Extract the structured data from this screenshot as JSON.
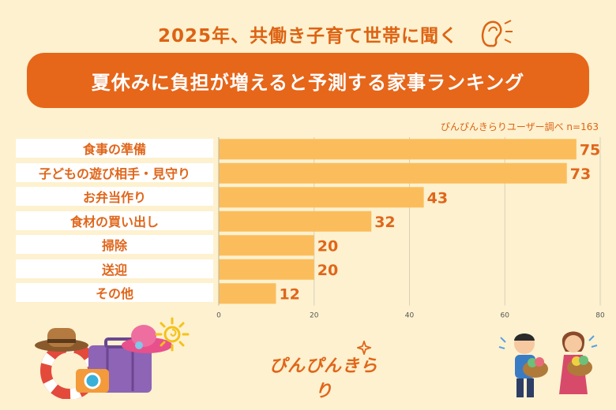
{
  "header": {
    "headline": "2025年、共働き子育て世帯に聞く",
    "banner_title": "夏休みに負担が増えると予測する家事ランキング",
    "source": "ぴんぴんきらりユーザー調べ n=163"
  },
  "logo_text": "ぴんぴんきらり",
  "colors": {
    "accent": "#e6661a",
    "bar": "#fbbd5c",
    "background": "#fdf1cf"
  },
  "chart_data": {
    "type": "bar",
    "orientation": "horizontal",
    "categories": [
      "食事の準備",
      "子どもの遊び相手・見守り",
      "お弁当作り",
      "食材の買い出し",
      "掃除",
      "送迎",
      "その他"
    ],
    "values": [
      75,
      73,
      43,
      32,
      20,
      20,
      12
    ],
    "xlim": [
      0,
      80
    ],
    "xticks": [
      "0",
      "20",
      "40",
      "60",
      "80"
    ],
    "grid": true
  }
}
